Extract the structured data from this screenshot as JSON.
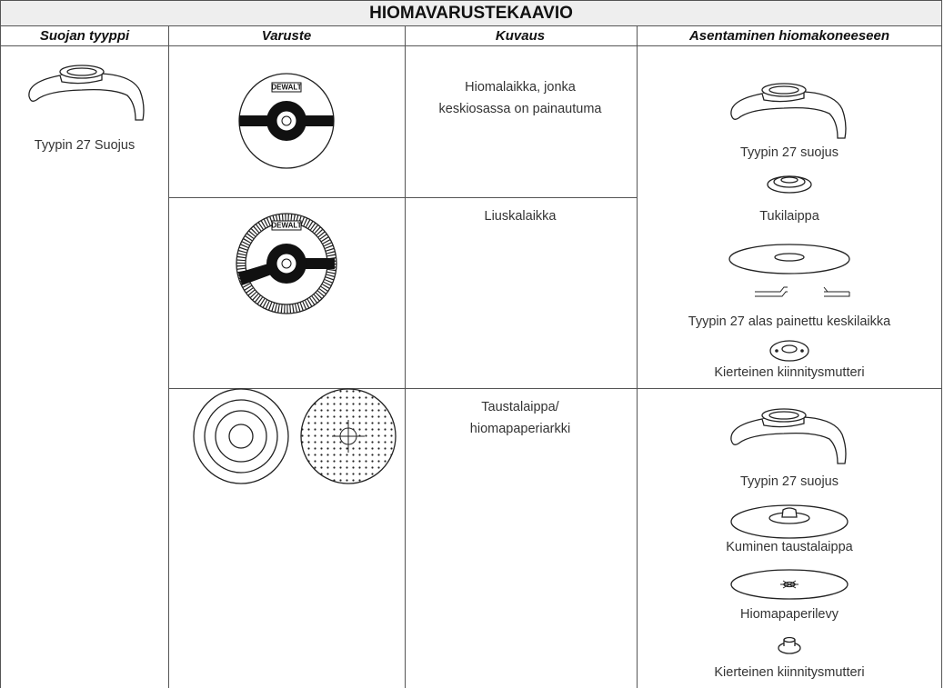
{
  "header": {
    "title": "HIOMAVARUSTEKAAVIO"
  },
  "table": {
    "columns": [
      "Suojan tyyppi",
      "Varuste",
      "Kuvaus",
      "Asentaminen hiomakoneeseen"
    ],
    "guard_type": "Tyypin 27 Suojus",
    "rows": [
      {
        "accessory_brand": "DEWALT",
        "description": [
          "Hiomalaikka, jonka",
          "keskiosassa on painautuma"
        ]
      },
      {
        "accessory_brand": "DEWALT",
        "description": [
          "Liuskalaikka"
        ]
      },
      {
        "description": [
          "Taustalaippa/",
          "hiomapaperiarkki"
        ]
      }
    ],
    "assembly": [
      [
        "Tyypin 27 suojus",
        "Tukilaippa",
        "Tyypin 27 alas painettu keskilaikka",
        "Kierteinen kiinnitysmutteri"
      ],
      [
        "Tyypin 27 suojus",
        "Kuminen taustalaippa",
        "Hiomapaperilevy",
        "Kierteinen kiinnitysmutteri"
      ]
    ]
  }
}
